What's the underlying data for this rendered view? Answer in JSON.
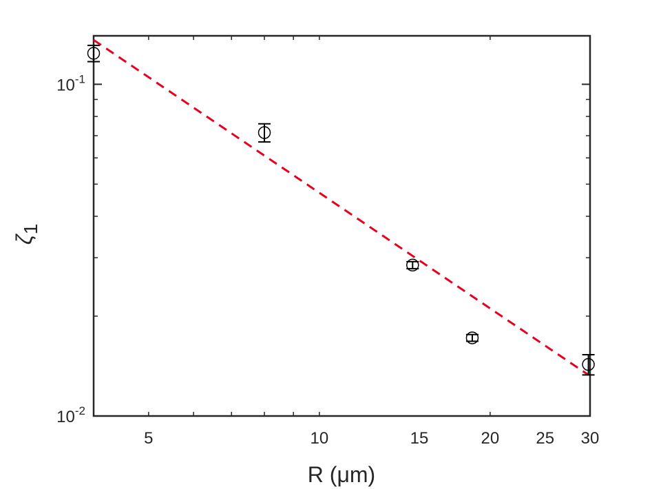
{
  "chart_data": {
    "type": "scatter",
    "xscale": "log",
    "yscale": "log",
    "xlim": [
      4,
      30
    ],
    "ylim": [
      0.01,
      0.14
    ],
    "x_ticks": [
      {
        "value": 5,
        "label": "5"
      },
      {
        "value": 10,
        "label": "10"
      },
      {
        "value": 15,
        "label": "15"
      },
      {
        "value": 20,
        "label": "20"
      },
      {
        "value": 25,
        "label": "25"
      },
      {
        "value": 30,
        "label": "30"
      }
    ],
    "y_ticks": [
      {
        "value": 0.01,
        "base": "10",
        "exp": "-2"
      },
      {
        "value": 0.1,
        "base": "10",
        "exp": "-1"
      }
    ],
    "xlabel": "R (μm)",
    "ylabel": "ζ",
    "ylabel_sub": "1",
    "points": [
      {
        "x": 4.0,
        "y": 0.124,
        "err": 0.007
      },
      {
        "x": 8.0,
        "y": 0.0715,
        "err": 0.0045
      },
      {
        "x": 14.6,
        "y": 0.0285,
        "err": 0.0007
      },
      {
        "x": 18.6,
        "y": 0.0172,
        "err": 0.0004
      },
      {
        "x": 29.8,
        "y": 0.0143,
        "err": 0.001
      }
    ],
    "fit_line": {
      "x": [
        4.0,
        29.8
      ],
      "y": [
        0.136,
        0.0133
      ],
      "color": "#e8001c",
      "style": "dashed"
    },
    "marker_color": "#000000",
    "grid": false
  }
}
